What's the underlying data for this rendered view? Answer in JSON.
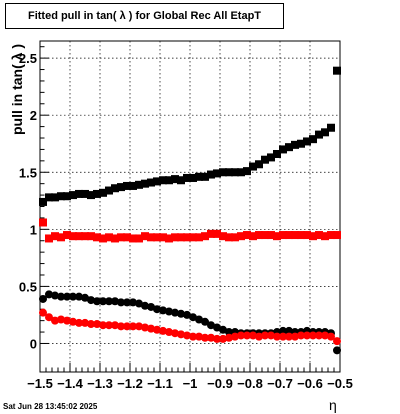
{
  "chart_data": {
    "type": "scatter",
    "title": "Fitted pull in tan( λ ) for Global Rec All EtapT",
    "xlabel": "η",
    "ylabel": "pull in tan( λ )",
    "xlim": [
      -1.5,
      -0.5
    ],
    "ylim": [
      -0.25,
      2.65
    ],
    "x_ticks": [
      "−1.5",
      "−1.4",
      "−1.3",
      "−1.2",
      "−1.1",
      "−1",
      "−0.9",
      "−0.8",
      "−0.7",
      "−0.6",
      "−0.5"
    ],
    "y_ticks": [
      "0",
      "0.5",
      "1",
      "1.5",
      "2",
      "2.5"
    ],
    "grid": true,
    "series": [
      {
        "color": "#000000",
        "marker": "square",
        "x": [
          -1.49,
          -1.47,
          -1.45,
          -1.43,
          -1.41,
          -1.39,
          -1.37,
          -1.35,
          -1.33,
          -1.31,
          -1.29,
          -1.27,
          -1.25,
          -1.23,
          -1.21,
          -1.19,
          -1.17,
          -1.15,
          -1.13,
          -1.11,
          -1.09,
          -1.07,
          -1.05,
          -1.03,
          -1.01,
          -0.99,
          -0.97,
          -0.95,
          -0.93,
          -0.91,
          -0.89,
          -0.87,
          -0.85,
          -0.83,
          -0.81,
          -0.79,
          -0.77,
          -0.75,
          -0.73,
          -0.71,
          -0.69,
          -0.67,
          -0.65,
          -0.63,
          -0.61,
          -0.59,
          -0.57,
          -0.55,
          -0.53,
          -0.51
        ],
        "y": [
          1.24,
          1.28,
          1.28,
          1.29,
          1.29,
          1.3,
          1.31,
          1.31,
          1.3,
          1.31,
          1.32,
          1.34,
          1.36,
          1.37,
          1.38,
          1.38,
          1.39,
          1.4,
          1.41,
          1.42,
          1.43,
          1.43,
          1.44,
          1.43,
          1.45,
          1.45,
          1.46,
          1.46,
          1.48,
          1.49,
          1.5,
          1.5,
          1.5,
          1.5,
          1.51,
          1.55,
          1.57,
          1.61,
          1.63,
          1.66,
          1.7,
          1.72,
          1.74,
          1.75,
          1.77,
          1.79,
          1.83,
          1.85,
          1.89,
          2.39
        ]
      },
      {
        "color": "#ff0000",
        "marker": "square",
        "x": [
          -1.49,
          -1.47,
          -1.45,
          -1.43,
          -1.41,
          -1.39,
          -1.37,
          -1.35,
          -1.33,
          -1.31,
          -1.29,
          -1.27,
          -1.25,
          -1.23,
          -1.21,
          -1.19,
          -1.17,
          -1.15,
          -1.13,
          -1.11,
          -1.09,
          -1.07,
          -1.05,
          -1.03,
          -1.01,
          -0.99,
          -0.97,
          -0.95,
          -0.93,
          -0.91,
          -0.89,
          -0.87,
          -0.85,
          -0.83,
          -0.81,
          -0.79,
          -0.77,
          -0.75,
          -0.73,
          -0.71,
          -0.69,
          -0.67,
          -0.65,
          -0.63,
          -0.61,
          -0.59,
          -0.57,
          -0.55,
          -0.53,
          -0.51
        ],
        "y": [
          1.06,
          0.92,
          0.94,
          0.93,
          0.95,
          0.94,
          0.94,
          0.94,
          0.94,
          0.93,
          0.92,
          0.93,
          0.92,
          0.93,
          0.93,
          0.92,
          0.92,
          0.94,
          0.93,
          0.93,
          0.93,
          0.92,
          0.93,
          0.93,
          0.93,
          0.93,
          0.93,
          0.94,
          0.96,
          0.96,
          0.94,
          0.93,
          0.93,
          0.94,
          0.95,
          0.94,
          0.95,
          0.95,
          0.95,
          0.94,
          0.95,
          0.95,
          0.95,
          0.95,
          0.95,
          0.94,
          0.95,
          0.94,
          0.95,
          0.95
        ]
      },
      {
        "color": "#000000",
        "marker": "circle",
        "x": [
          -1.49,
          -1.47,
          -1.45,
          -1.43,
          -1.41,
          -1.39,
          -1.37,
          -1.35,
          -1.33,
          -1.31,
          -1.29,
          -1.27,
          -1.25,
          -1.23,
          -1.21,
          -1.19,
          -1.17,
          -1.15,
          -1.13,
          -1.11,
          -1.09,
          -1.07,
          -1.05,
          -1.03,
          -1.01,
          -0.99,
          -0.97,
          -0.95,
          -0.93,
          -0.91,
          -0.89,
          -0.87,
          -0.85,
          -0.83,
          -0.81,
          -0.79,
          -0.77,
          -0.75,
          -0.73,
          -0.71,
          -0.69,
          -0.67,
          -0.65,
          -0.63,
          -0.61,
          -0.59,
          -0.57,
          -0.55,
          -0.53,
          -0.51
        ],
        "y": [
          0.39,
          0.43,
          0.42,
          0.41,
          0.41,
          0.41,
          0.41,
          0.4,
          0.38,
          0.37,
          0.37,
          0.37,
          0.37,
          0.36,
          0.36,
          0.36,
          0.35,
          0.33,
          0.32,
          0.3,
          0.29,
          0.28,
          0.27,
          0.26,
          0.25,
          0.23,
          0.21,
          0.19,
          0.16,
          0.14,
          0.12,
          0.1,
          0.1,
          0.09,
          0.09,
          0.09,
          0.09,
          0.09,
          0.09,
          0.1,
          0.11,
          0.11,
          0.1,
          0.1,
          0.11,
          0.1,
          0.1,
          0.1,
          0.09,
          -0.06
        ]
      },
      {
        "color": "#ff0000",
        "marker": "circle",
        "x": [
          -1.49,
          -1.47,
          -1.45,
          -1.43,
          -1.41,
          -1.39,
          -1.37,
          -1.35,
          -1.33,
          -1.31,
          -1.29,
          -1.27,
          -1.25,
          -1.23,
          -1.21,
          -1.19,
          -1.17,
          -1.15,
          -1.13,
          -1.11,
          -1.09,
          -1.07,
          -1.05,
          -1.03,
          -1.01,
          -0.99,
          -0.97,
          -0.95,
          -0.93,
          -0.91,
          -0.89,
          -0.87,
          -0.85,
          -0.83,
          -0.81,
          -0.79,
          -0.77,
          -0.75,
          -0.73,
          -0.71,
          -0.69,
          -0.67,
          -0.65,
          -0.63,
          -0.61,
          -0.59,
          -0.57,
          -0.55,
          -0.53,
          -0.51
        ],
        "y": [
          0.27,
          0.23,
          0.2,
          0.21,
          0.2,
          0.19,
          0.18,
          0.18,
          0.17,
          0.17,
          0.16,
          0.16,
          0.16,
          0.15,
          0.15,
          0.15,
          0.15,
          0.14,
          0.13,
          0.12,
          0.11,
          0.1,
          0.09,
          0.08,
          0.07,
          0.06,
          0.06,
          0.05,
          0.05,
          0.04,
          0.04,
          0.05,
          0.06,
          0.07,
          0.07,
          0.07,
          0.06,
          0.07,
          0.07,
          0.06,
          0.06,
          0.06,
          0.06,
          0.07,
          0.07,
          0.07,
          0.07,
          0.07,
          0.06,
          0.02
        ]
      }
    ]
  },
  "footer": {
    "datestamp": "Sat Jun 28 13:45:02 2025"
  }
}
